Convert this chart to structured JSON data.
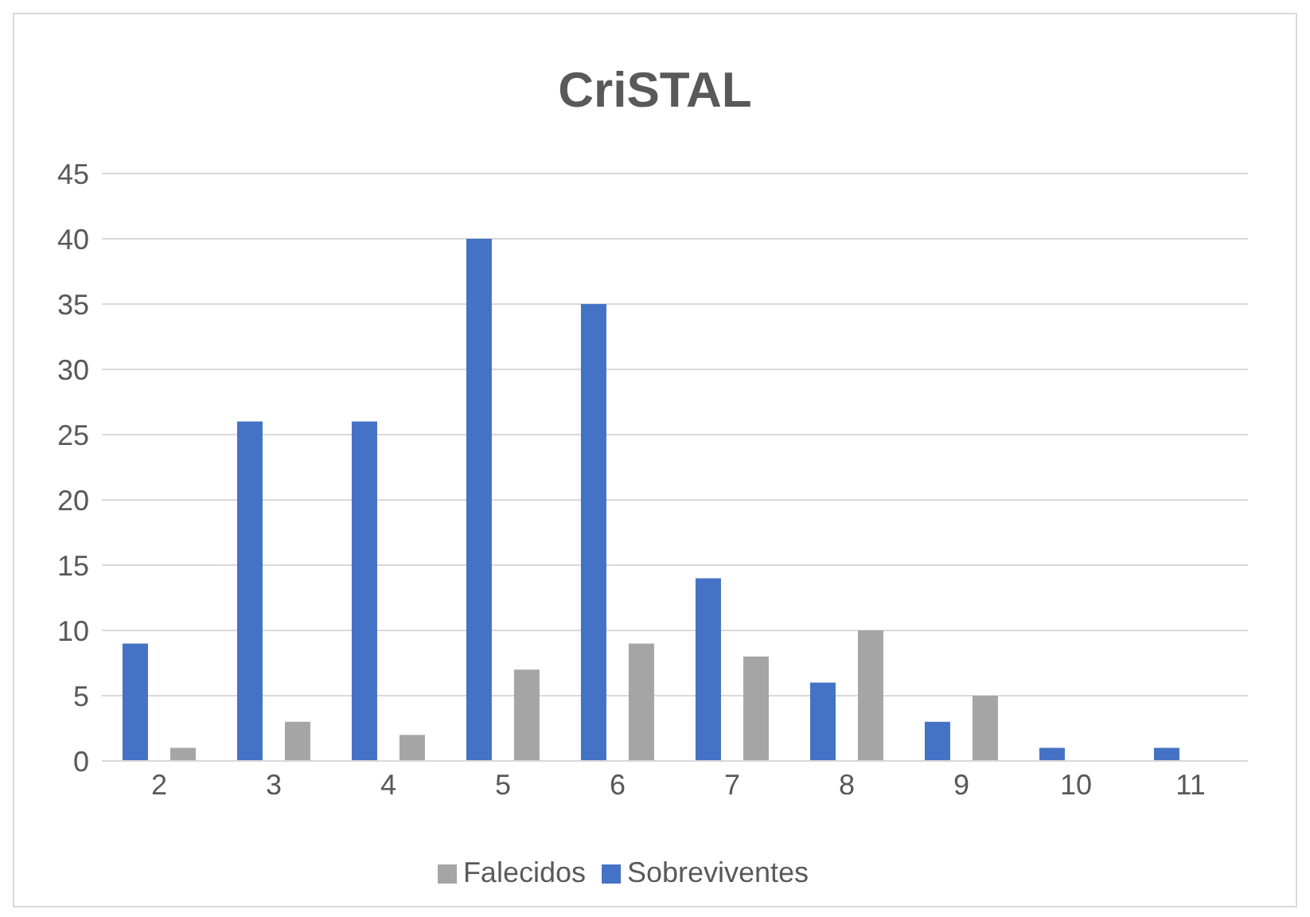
{
  "chart_data": {
    "type": "bar",
    "title": "CriSTAL",
    "categories": [
      "2",
      "3",
      "4",
      "5",
      "6",
      "7",
      "8",
      "9",
      "10",
      "11"
    ],
    "series": [
      {
        "name": "Sobreviventes",
        "color": "#4472c4",
        "values": [
          9,
          26,
          26,
          40,
          35,
          14,
          6,
          3,
          1,
          1
        ]
      },
      {
        "name": "Falecidos",
        "color": "#a5a5a5",
        "values": [
          1,
          3,
          2,
          7,
          9,
          8,
          10,
          5,
          0,
          0
        ]
      }
    ],
    "ylim": [
      0,
      45
    ],
    "yticks": [
      0,
      5,
      10,
      15,
      20,
      25,
      30,
      35,
      40,
      45
    ],
    "grid": "y",
    "legend": "bottom"
  }
}
